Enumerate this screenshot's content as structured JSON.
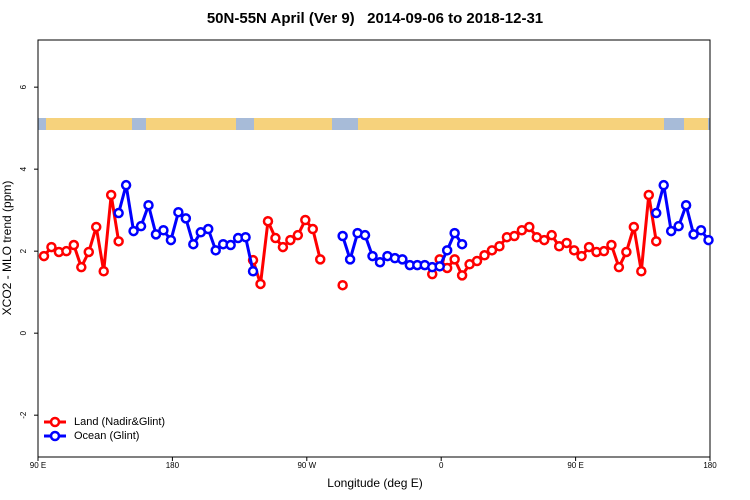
{
  "chart_data": {
    "type": "line",
    "title": "50N-55N April (Ver 9)   2014-09-06 to 2018-12-31",
    "xlabel": "Longitude (deg E)",
    "ylabel": "XCO2 - MLO trend (ppm)",
    "xlim": [
      90,
      540
    ],
    "xticks": [
      {
        "value": 90,
        "label": "90 E"
      },
      {
        "value": 180,
        "label": "180"
      },
      {
        "value": 270,
        "label": "90 W"
      },
      {
        "value": 360,
        "label": "0"
      },
      {
        "value": 450,
        "label": "90 E"
      },
      {
        "value": 540,
        "label": "180"
      }
    ],
    "ylim": [
      -3.02,
      7.15
    ],
    "yticks": [
      -2,
      0,
      2,
      4,
      6
    ],
    "legend": "bottomleft",
    "x": [
      94,
      99,
      104,
      109,
      114,
      119,
      124,
      129,
      134,
      139,
      144,
      149,
      154,
      159,
      164,
      169,
      174,
      179,
      184,
      189,
      194,
      199,
      204,
      209,
      214,
      219,
      224,
      229,
      234,
      239,
      244,
      249,
      254,
      259,
      264,
      269,
      274,
      279,
      284,
      289,
      294,
      299,
      304,
      309,
      314,
      319,
      324,
      329,
      334,
      339,
      344,
      349,
      354,
      359,
      364,
      369,
      374,
      379,
      384,
      389,
      394,
      399,
      404,
      409,
      414,
      419,
      424,
      429,
      434,
      439,
      444,
      449,
      454,
      459,
      464,
      469,
      474,
      479,
      484,
      489,
      494,
      499,
      504,
      509,
      514,
      519,
      524,
      529,
      534,
      539
    ],
    "series": [
      {
        "name": "Land (Nadir&Glint)",
        "color": "#ff0000",
        "values": [
          1.88,
          2.1,
          1.98,
          2.0,
          2.15,
          1.61,
          1.98,
          2.59,
          1.51,
          3.37,
          2.24,
          null,
          null,
          null,
          null,
          null,
          null,
          null,
          null,
          null,
          null,
          null,
          null,
          null,
          null,
          null,
          null,
          null,
          1.78,
          1.2,
          2.73,
          2.32,
          2.1,
          2.27,
          2.39,
          2.76,
          2.54,
          1.8,
          null,
          null,
          1.17,
          null,
          null,
          null,
          null,
          null,
          null,
          null,
          null,
          null,
          null,
          null,
          1.44,
          1.8,
          1.59,
          1.8,
          1.41,
          1.68,
          1.76,
          1.9,
          2.02,
          2.12,
          2.34,
          2.37,
          2.51,
          2.59,
          2.34,
          2.27,
          2.39,
          2.12,
          2.2,
          2.02,
          1.88,
          2.1,
          1.98,
          2.0,
          2.15,
          1.61,
          1.98,
          2.59,
          1.51,
          3.37,
          2.24,
          null,
          null,
          null,
          null,
          null,
          null,
          null
        ]
      },
      {
        "name": "Ocean (Glint)",
        "color": "#0000ff",
        "values": [
          null,
          null,
          null,
          null,
          null,
          null,
          null,
          null,
          null,
          null,
          2.93,
          3.61,
          2.49,
          2.61,
          3.12,
          2.41,
          2.51,
          2.27,
          2.95,
          2.8,
          2.17,
          2.46,
          2.54,
          2.02,
          2.17,
          2.15,
          2.32,
          2.34,
          1.51,
          null,
          null,
          null,
          null,
          null,
          null,
          null,
          null,
          null,
          null,
          null,
          2.37,
          1.8,
          2.44,
          2.39,
          1.88,
          1.73,
          1.88,
          1.83,
          1.8,
          1.66,
          1.66,
          1.66,
          1.61,
          1.63,
          2.02,
          2.44,
          2.17,
          null,
          null,
          null,
          null,
          null,
          null,
          null,
          null,
          null,
          null,
          null,
          null,
          null,
          null,
          null,
          null,
          null,
          null,
          null,
          null,
          null,
          null,
          null,
          null,
          null,
          2.93,
          3.61,
          2.49,
          2.61,
          3.12,
          2.41,
          2.51,
          2.27
        ]
      }
    ]
  }
}
